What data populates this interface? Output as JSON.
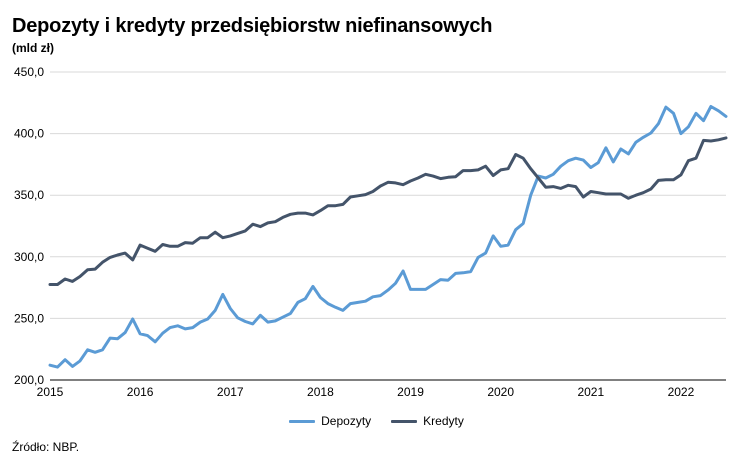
{
  "chart_data": {
    "type": "line",
    "title": "Depozyty i kredyty przedsiębiorstw niefinansowych",
    "subtitle": "(mld zł)",
    "source": "Źródło: NBP.",
    "ylim": [
      200,
      450
    ],
    "xlim": [
      2015.0,
      2022.5
    ],
    "y_ticks": [
      200,
      250,
      300,
      350,
      400,
      450
    ],
    "y_tick_labels": [
      "200,0",
      "250,0",
      "300,0",
      "350,0",
      "400,0",
      "450,0"
    ],
    "x_ticks": [
      2015,
      2016,
      2017,
      2018,
      2019,
      2020,
      2021,
      2022
    ],
    "x_tick_labels": [
      "2015",
      "2016",
      "2017",
      "2018",
      "2019",
      "2020",
      "2021",
      "2022"
    ],
    "grid": "horizontal",
    "legend_position": "bottom",
    "series": [
      {
        "name": "Depozyty",
        "color": "#5b9bd5",
        "x": [
          2015.0,
          2015.083,
          2015.167,
          2015.25,
          2015.333,
          2015.417,
          2015.5,
          2015.583,
          2015.667,
          2015.75,
          2015.833,
          2015.917,
          2016.0,
          2016.083,
          2016.167,
          2016.25,
          2016.333,
          2016.417,
          2016.5,
          2016.583,
          2016.667,
          2016.75,
          2016.833,
          2016.917,
          2017.0,
          2017.083,
          2017.167,
          2017.25,
          2017.333,
          2017.417,
          2017.5,
          2017.583,
          2017.667,
          2017.75,
          2017.833,
          2017.917,
          2018.0,
          2018.083,
          2018.167,
          2018.25,
          2018.333,
          2018.417,
          2018.5,
          2018.583,
          2018.667,
          2018.75,
          2018.833,
          2018.917,
          2019.0,
          2019.083,
          2019.167,
          2019.25,
          2019.333,
          2019.417,
          2019.5,
          2019.583,
          2019.667,
          2019.75,
          2019.833,
          2019.917,
          2020.0,
          2020.083,
          2020.167,
          2020.25,
          2020.333,
          2020.417,
          2020.5,
          2020.583,
          2020.667,
          2020.75,
          2020.833,
          2020.917,
          2021.0,
          2021.083,
          2021.167,
          2021.25,
          2021.333,
          2021.417,
          2021.5,
          2021.583,
          2021.667,
          2021.75,
          2021.833,
          2021.917,
          2022.0,
          2022.083,
          2022.167,
          2022.25,
          2022.333,
          2022.417,
          2022.5
        ],
        "values": [
          212.0,
          210.5,
          216.5,
          211.0,
          215.5,
          224.5,
          222.5,
          224.5,
          234.0,
          233.5,
          238.5,
          249.5,
          237.5,
          236.0,
          231.0,
          238.0,
          242.5,
          244.0,
          241.5,
          242.5,
          247.0,
          249.5,
          256.5,
          269.5,
          258.0,
          250.5,
          247.5,
          245.5,
          252.5,
          247.0,
          248.0,
          251.0,
          254.0,
          263.0,
          266.0,
          276.0,
          267.0,
          262.0,
          259.0,
          256.5,
          262.0,
          263.0,
          264.0,
          267.5,
          268.5,
          273.0,
          278.5,
          288.5,
          273.5,
          273.5,
          273.5,
          277.5,
          281.5,
          281.0,
          286.5,
          287.0,
          288.0,
          299.5,
          303.0,
          317.0,
          308.5,
          309.5,
          322.0,
          327.0,
          350.0,
          365.5,
          364.0,
          367.0,
          373.5,
          378.0,
          380.0,
          378.5,
          372.5,
          376.5,
          388.5,
          377.0,
          387.5,
          383.5,
          393.0,
          397.0,
          400.5,
          408.0,
          421.5,
          416.5,
          400.0,
          405.5,
          416.5,
          410.5,
          422.0,
          418.5,
          414.0
        ]
      },
      {
        "name": "Kredyty",
        "color": "#44546a",
        "x": [
          2015.0,
          2015.083,
          2015.167,
          2015.25,
          2015.333,
          2015.417,
          2015.5,
          2015.583,
          2015.667,
          2015.75,
          2015.833,
          2015.917,
          2016.0,
          2016.083,
          2016.167,
          2016.25,
          2016.333,
          2016.417,
          2016.5,
          2016.583,
          2016.667,
          2016.75,
          2016.833,
          2016.917,
          2017.0,
          2017.083,
          2017.167,
          2017.25,
          2017.333,
          2017.417,
          2017.5,
          2017.583,
          2017.667,
          2017.75,
          2017.833,
          2017.917,
          2018.0,
          2018.083,
          2018.167,
          2018.25,
          2018.333,
          2018.417,
          2018.5,
          2018.583,
          2018.667,
          2018.75,
          2018.833,
          2018.917,
          2019.0,
          2019.083,
          2019.167,
          2019.25,
          2019.333,
          2019.417,
          2019.5,
          2019.583,
          2019.667,
          2019.75,
          2019.833,
          2019.917,
          2020.0,
          2020.083,
          2020.167,
          2020.25,
          2020.333,
          2020.417,
          2020.5,
          2020.583,
          2020.667,
          2020.75,
          2020.833,
          2020.917,
          2021.0,
          2021.083,
          2021.167,
          2021.25,
          2021.333,
          2021.417,
          2021.5,
          2021.583,
          2021.667,
          2021.75,
          2021.833,
          2021.917,
          2022.0,
          2022.083,
          2022.167,
          2022.25,
          2022.333,
          2022.417,
          2022.5
        ],
        "values": [
          277.5,
          277.5,
          282.0,
          280.0,
          284.0,
          289.5,
          290.0,
          295.5,
          299.5,
          301.5,
          303.0,
          297.5,
          309.5,
          307.0,
          304.5,
          310.0,
          308.5,
          308.5,
          311.5,
          311.0,
          315.5,
          315.5,
          320.0,
          315.5,
          317.0,
          319.0,
          321.0,
          326.5,
          324.5,
          327.5,
          328.5,
          332.0,
          334.5,
          335.5,
          335.5,
          334.0,
          337.5,
          341.5,
          341.5,
          342.5,
          348.5,
          349.5,
          350.5,
          353.0,
          357.5,
          360.5,
          360.0,
          358.5,
          361.5,
          364.0,
          367.0,
          365.5,
          363.5,
          364.5,
          365.0,
          370.0,
          370.0,
          370.5,
          373.5,
          366.0,
          370.5,
          371.5,
          383.0,
          380.0,
          371.5,
          364.0,
          356.5,
          357.0,
          355.5,
          358.0,
          357.0,
          348.5,
          353.0,
          352.0,
          351.0,
          351.0,
          351.0,
          347.5,
          350.0,
          352.0,
          355.0,
          362.0,
          362.5,
          362.5,
          366.5,
          378.0,
          380.0,
          394.5,
          394.0,
          395.0,
          396.5
        ]
      }
    ]
  }
}
